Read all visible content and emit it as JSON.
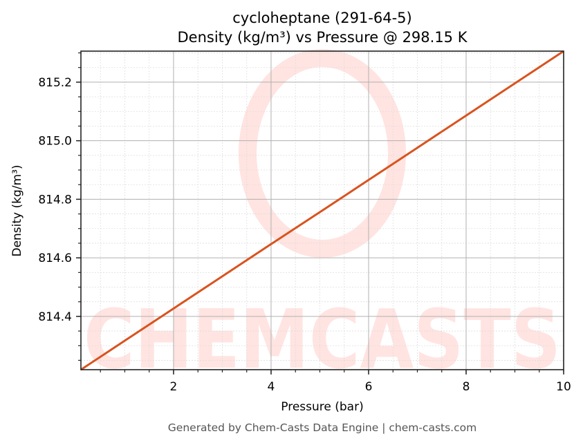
{
  "chart_data": {
    "type": "line",
    "title": "cycloheptane (291-64-5)",
    "subtitle": "Density (kg/m³) vs Pressure @ 298.15 K",
    "xlabel": "Pressure (bar)",
    "ylabel": "Density (kg/m³)",
    "xlim": [
      0.1,
      10
    ],
    "ylim": [
      814.218,
      815.306
    ],
    "x_ticks": [
      2,
      4,
      6,
      8,
      10
    ],
    "x_tick_labels": [
      "2",
      "4",
      "6",
      "8",
      "10"
    ],
    "x_minor_step": 0.5,
    "y_ticks": [
      814.4,
      814.6,
      814.8,
      815.0,
      815.2
    ],
    "y_tick_labels": [
      "814.4",
      "814.6",
      "814.8",
      "815.0",
      "815.2"
    ],
    "y_minor_step": 0.05,
    "grid": true,
    "legend": null,
    "series": [
      {
        "name": "Density",
        "color": "#d9531e",
        "x": [
          0.1,
          1,
          2,
          3,
          4,
          5,
          6,
          7,
          8,
          9,
          10
        ],
        "y": [
          814.218,
          814.317,
          814.427,
          814.537,
          814.647,
          814.756,
          814.866,
          814.976,
          815.086,
          815.196,
          815.306
        ]
      }
    ],
    "watermark": "CHEMCASTS"
  },
  "footer": {
    "text": "Generated by Chem-Casts Data Engine | chem-casts.com"
  },
  "colors": {
    "line": "#d9531e",
    "watermark": "#ffe4e1",
    "major_grid": "#b0b0b0",
    "minor_grid": "#dddddd",
    "axis": "#222222",
    "footer_text": "#555555"
  }
}
